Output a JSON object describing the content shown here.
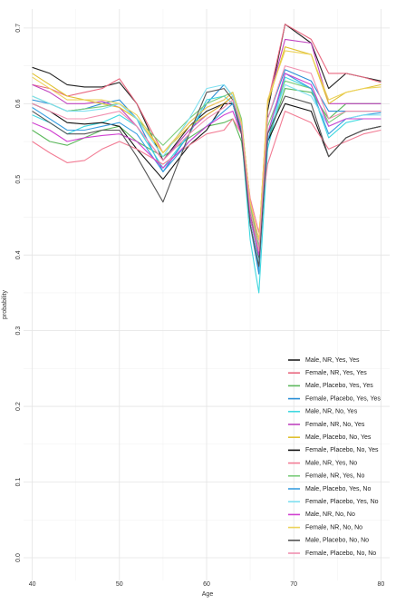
{
  "chart_data": {
    "type": "line",
    "xlabel": "Age",
    "ylabel": "probability",
    "xlim": [
      39,
      81
    ],
    "ylim": [
      -0.03,
      0.725
    ],
    "x_ticks": [
      "40",
      "50",
      "60",
      "70",
      "80"
    ],
    "y_ticks": [
      "0.0",
      "0.1",
      "0.2",
      "0.3",
      "0.4",
      "0.5",
      "0.6",
      "0.7"
    ],
    "grid": true,
    "legend_position": "bottom-right",
    "x": [
      40,
      42,
      44,
      46,
      48,
      50,
      52,
      55,
      58,
      60,
      62,
      63,
      64,
      65,
      66,
      67,
      69,
      72,
      74,
      76,
      78,
      80
    ],
    "series": [
      {
        "name": "Male, NR, Yes, Yes",
        "color": "#222222",
        "values": [
          0.648,
          0.64,
          0.625,
          0.622,
          0.622,
          0.628,
          0.6,
          0.525,
          0.57,
          0.59,
          0.6,
          0.61,
          0.57,
          0.46,
          0.395,
          0.59,
          0.705,
          0.68,
          0.62,
          0.64,
          0.635,
          0.63
        ]
      },
      {
        "name": "Female, NR, Yes, Yes",
        "color": "#e8677f",
        "values": [
          0.625,
          0.62,
          0.61,
          0.615,
          0.62,
          0.633,
          0.6,
          0.535,
          0.575,
          0.595,
          0.605,
          0.615,
          0.575,
          0.47,
          0.42,
          0.6,
          0.705,
          0.685,
          0.64,
          0.64,
          0.635,
          0.628
        ]
      },
      {
        "name": "Male, Placebo, Yes, Yes",
        "color": "#5cb85c",
        "values": [
          0.565,
          0.55,
          0.545,
          0.555,
          0.565,
          0.57,
          0.55,
          0.53,
          0.555,
          0.57,
          0.575,
          0.58,
          0.55,
          0.46,
          0.4,
          0.55,
          0.62,
          0.615,
          0.58,
          0.6,
          0.6,
          0.6
        ]
      },
      {
        "name": "Female, Placebo, Yes, Yes",
        "color": "#2b8fd6",
        "values": [
          0.605,
          0.6,
          0.59,
          0.593,
          0.6,
          0.605,
          0.58,
          0.51,
          0.56,
          0.6,
          0.625,
          0.61,
          0.565,
          0.44,
          0.375,
          0.58,
          0.645,
          0.63,
          0.59,
          0.59,
          0.59,
          0.59
        ]
      },
      {
        "name": "Male, NR, No, Yes",
        "color": "#40d8e0",
        "values": [
          0.585,
          0.575,
          0.56,
          0.57,
          0.575,
          0.585,
          0.57,
          0.515,
          0.56,
          0.605,
          0.61,
          0.6,
          0.56,
          0.42,
          0.35,
          0.54,
          0.635,
          0.62,
          0.555,
          0.575,
          0.58,
          0.58
        ]
      },
      {
        "name": "Female, NR, No, Yes",
        "color": "#c044c0",
        "values": [
          0.625,
          0.615,
          0.6,
          0.6,
          0.603,
          0.595,
          0.57,
          0.525,
          0.565,
          0.585,
          0.6,
          0.61,
          0.575,
          0.47,
          0.41,
          0.6,
          0.685,
          0.68,
          0.6,
          0.6,
          0.6,
          0.6
        ]
      },
      {
        "name": "Male, Placebo, No, Yes",
        "color": "#e0c030",
        "values": [
          0.64,
          0.625,
          0.61,
          0.605,
          0.6,
          0.595,
          0.58,
          0.535,
          0.57,
          0.585,
          0.6,
          0.61,
          0.575,
          0.47,
          0.42,
          0.6,
          0.675,
          0.665,
          0.6,
          0.615,
          0.62,
          0.625
        ]
      },
      {
        "name": "Female, Placebo, No, Yes",
        "color": "#111111",
        "values": [
          0.6,
          0.59,
          0.575,
          0.573,
          0.575,
          0.57,
          0.54,
          0.5,
          0.545,
          0.565,
          0.6,
          0.6,
          0.56,
          0.45,
          0.39,
          0.55,
          0.6,
          0.59,
          0.53,
          0.555,
          0.565,
          0.57
        ]
      },
      {
        "name": "Male, NR, Yes, No",
        "color": "#f27c94",
        "values": [
          0.55,
          0.535,
          0.522,
          0.525,
          0.54,
          0.55,
          0.54,
          0.52,
          0.545,
          0.56,
          0.565,
          0.58,
          0.56,
          0.475,
          0.43,
          0.52,
          0.59,
          0.575,
          0.54,
          0.55,
          0.56,
          0.565
        ]
      },
      {
        "name": "Female, NR, Yes, No",
        "color": "#7acc7a",
        "values": [
          0.61,
          0.6,
          0.59,
          0.593,
          0.596,
          0.6,
          0.58,
          0.545,
          0.58,
          0.6,
          0.61,
          0.615,
          0.58,
          0.465,
          0.41,
          0.57,
          0.63,
          0.62,
          0.575,
          0.59,
          0.59,
          0.59
        ]
      },
      {
        "name": "Male, Placebo, Yes, No",
        "color": "#3a9fe0",
        "values": [
          0.595,
          0.58,
          0.565,
          0.565,
          0.57,
          0.575,
          0.56,
          0.51,
          0.55,
          0.57,
          0.59,
          0.6,
          0.56,
          0.44,
          0.38,
          0.55,
          0.64,
          0.62,
          0.56,
          0.58,
          0.585,
          0.588
        ]
      },
      {
        "name": "Female, Placebo, Yes, No",
        "color": "#7fe0f0",
        "values": [
          0.61,
          0.6,
          0.59,
          0.59,
          0.593,
          0.6,
          0.58,
          0.53,
          0.58,
          0.62,
          0.625,
          0.61,
          0.57,
          0.45,
          0.39,
          0.56,
          0.625,
          0.61,
          0.57,
          0.58,
          0.585,
          0.585
        ]
      },
      {
        "name": "Male, NR, No, No",
        "color": "#d040d0",
        "values": [
          0.575,
          0.565,
          0.55,
          0.555,
          0.558,
          0.56,
          0.55,
          0.515,
          0.55,
          0.57,
          0.585,
          0.59,
          0.56,
          0.45,
          0.4,
          0.56,
          0.64,
          0.625,
          0.57,
          0.58,
          0.58,
          0.58
        ]
      },
      {
        "name": "Female, NR, No, No",
        "color": "#ecd25a",
        "values": [
          0.635,
          0.62,
          0.605,
          0.605,
          0.605,
          0.6,
          0.585,
          0.535,
          0.575,
          0.595,
          0.605,
          0.615,
          0.575,
          0.47,
          0.42,
          0.605,
          0.67,
          0.665,
          0.605,
          0.615,
          0.62,
          0.622
        ]
      },
      {
        "name": "Male, Placebo, No, No",
        "color": "#555555",
        "values": [
          0.59,
          0.575,
          0.56,
          0.56,
          0.565,
          0.565,
          0.53,
          0.47,
          0.56,
          0.615,
          0.62,
          0.605,
          0.56,
          0.44,
          0.385,
          0.56,
          0.61,
          0.6,
          0.53,
          0.555,
          0.565,
          0.57
        ]
      },
      {
        "name": "Female, Placebo, No, No",
        "color": "#f090b0",
        "values": [
          0.6,
          0.59,
          0.58,
          0.58,
          0.585,
          0.59,
          0.57,
          0.525,
          0.56,
          0.58,
          0.595,
          0.605,
          0.57,
          0.46,
          0.405,
          0.58,
          0.65,
          0.64,
          0.58,
          0.59,
          0.59,
          0.59
        ]
      }
    ]
  }
}
